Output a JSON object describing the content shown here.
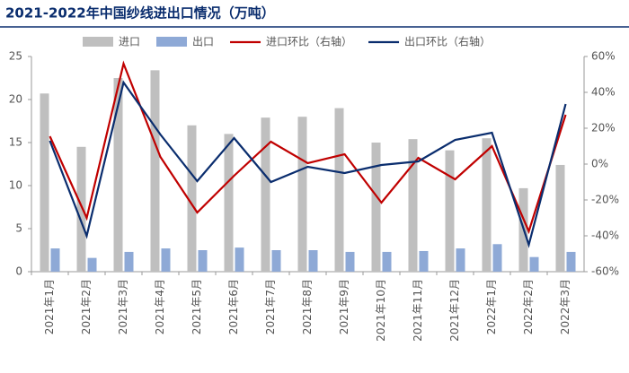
{
  "chart_data": {
    "type": "bar_line",
    "title": "2021-2022年中国纱线进出口情况（万吨）",
    "categories": [
      "2021年1月",
      "2021年2月",
      "2021年3月",
      "2021年4月",
      "2021年5月",
      "2021年6月",
      "2021年7月",
      "2021年8月",
      "2021年9月",
      "2021年10月",
      "2021年11月",
      "2021年12月",
      "2022年1月",
      "2022年2月",
      "2022年3月"
    ],
    "series": [
      {
        "name": "进口",
        "color": "#bfbfbf",
        "kind": "bar",
        "values": [
          20.7,
          14.5,
          22.5,
          23.4,
          17.0,
          16.0,
          17.9,
          18.0,
          19.0,
          15.0,
          15.4,
          14.1,
          15.5,
          9.7,
          12.4
        ]
      },
      {
        "name": "出口",
        "color": "#8ea9d6",
        "kind": "bar",
        "values": [
          2.7,
          1.6,
          2.3,
          2.7,
          2.5,
          2.8,
          2.5,
          2.5,
          2.3,
          2.3,
          2.4,
          2.7,
          3.2,
          1.7,
          2.3
        ]
      },
      {
        "name": "进口环比（右轴）",
        "color": "#c00000",
        "kind": "line",
        "axis": "y2",
        "values": [
          15.5,
          -30,
          56,
          4,
          -27,
          -6.5,
          12.5,
          0.5,
          5.5,
          -21.5,
          3.5,
          -8.5,
          10,
          -37.5,
          27.5
        ]
      },
      {
        "name": "出口环比（右轴）",
        "color": "#0a2d6e",
        "kind": "line",
        "axis": "y2",
        "values": [
          13,
          -40,
          45.5,
          16.5,
          -9.5,
          14.5,
          -10,
          -1.5,
          -5,
          -0.5,
          1.5,
          13.5,
          17.5,
          -45,
          33.5
        ]
      }
    ],
    "ylim": [
      0,
      25
    ],
    "yticks": [
      0,
      5,
      10,
      15,
      20,
      25
    ],
    "y2lim": [
      -60,
      60
    ],
    "y2ticks": [
      {
        "value": -60,
        "label": "-60%"
      },
      {
        "value": -40,
        "label": "-40%"
      },
      {
        "value": -20,
        "label": "-20%"
      },
      {
        "value": 0,
        "label": "0%"
      },
      {
        "value": 20,
        "label": "20%"
      },
      {
        "value": 40,
        "label": "40%"
      },
      {
        "value": 60,
        "label": "60%"
      }
    ]
  }
}
